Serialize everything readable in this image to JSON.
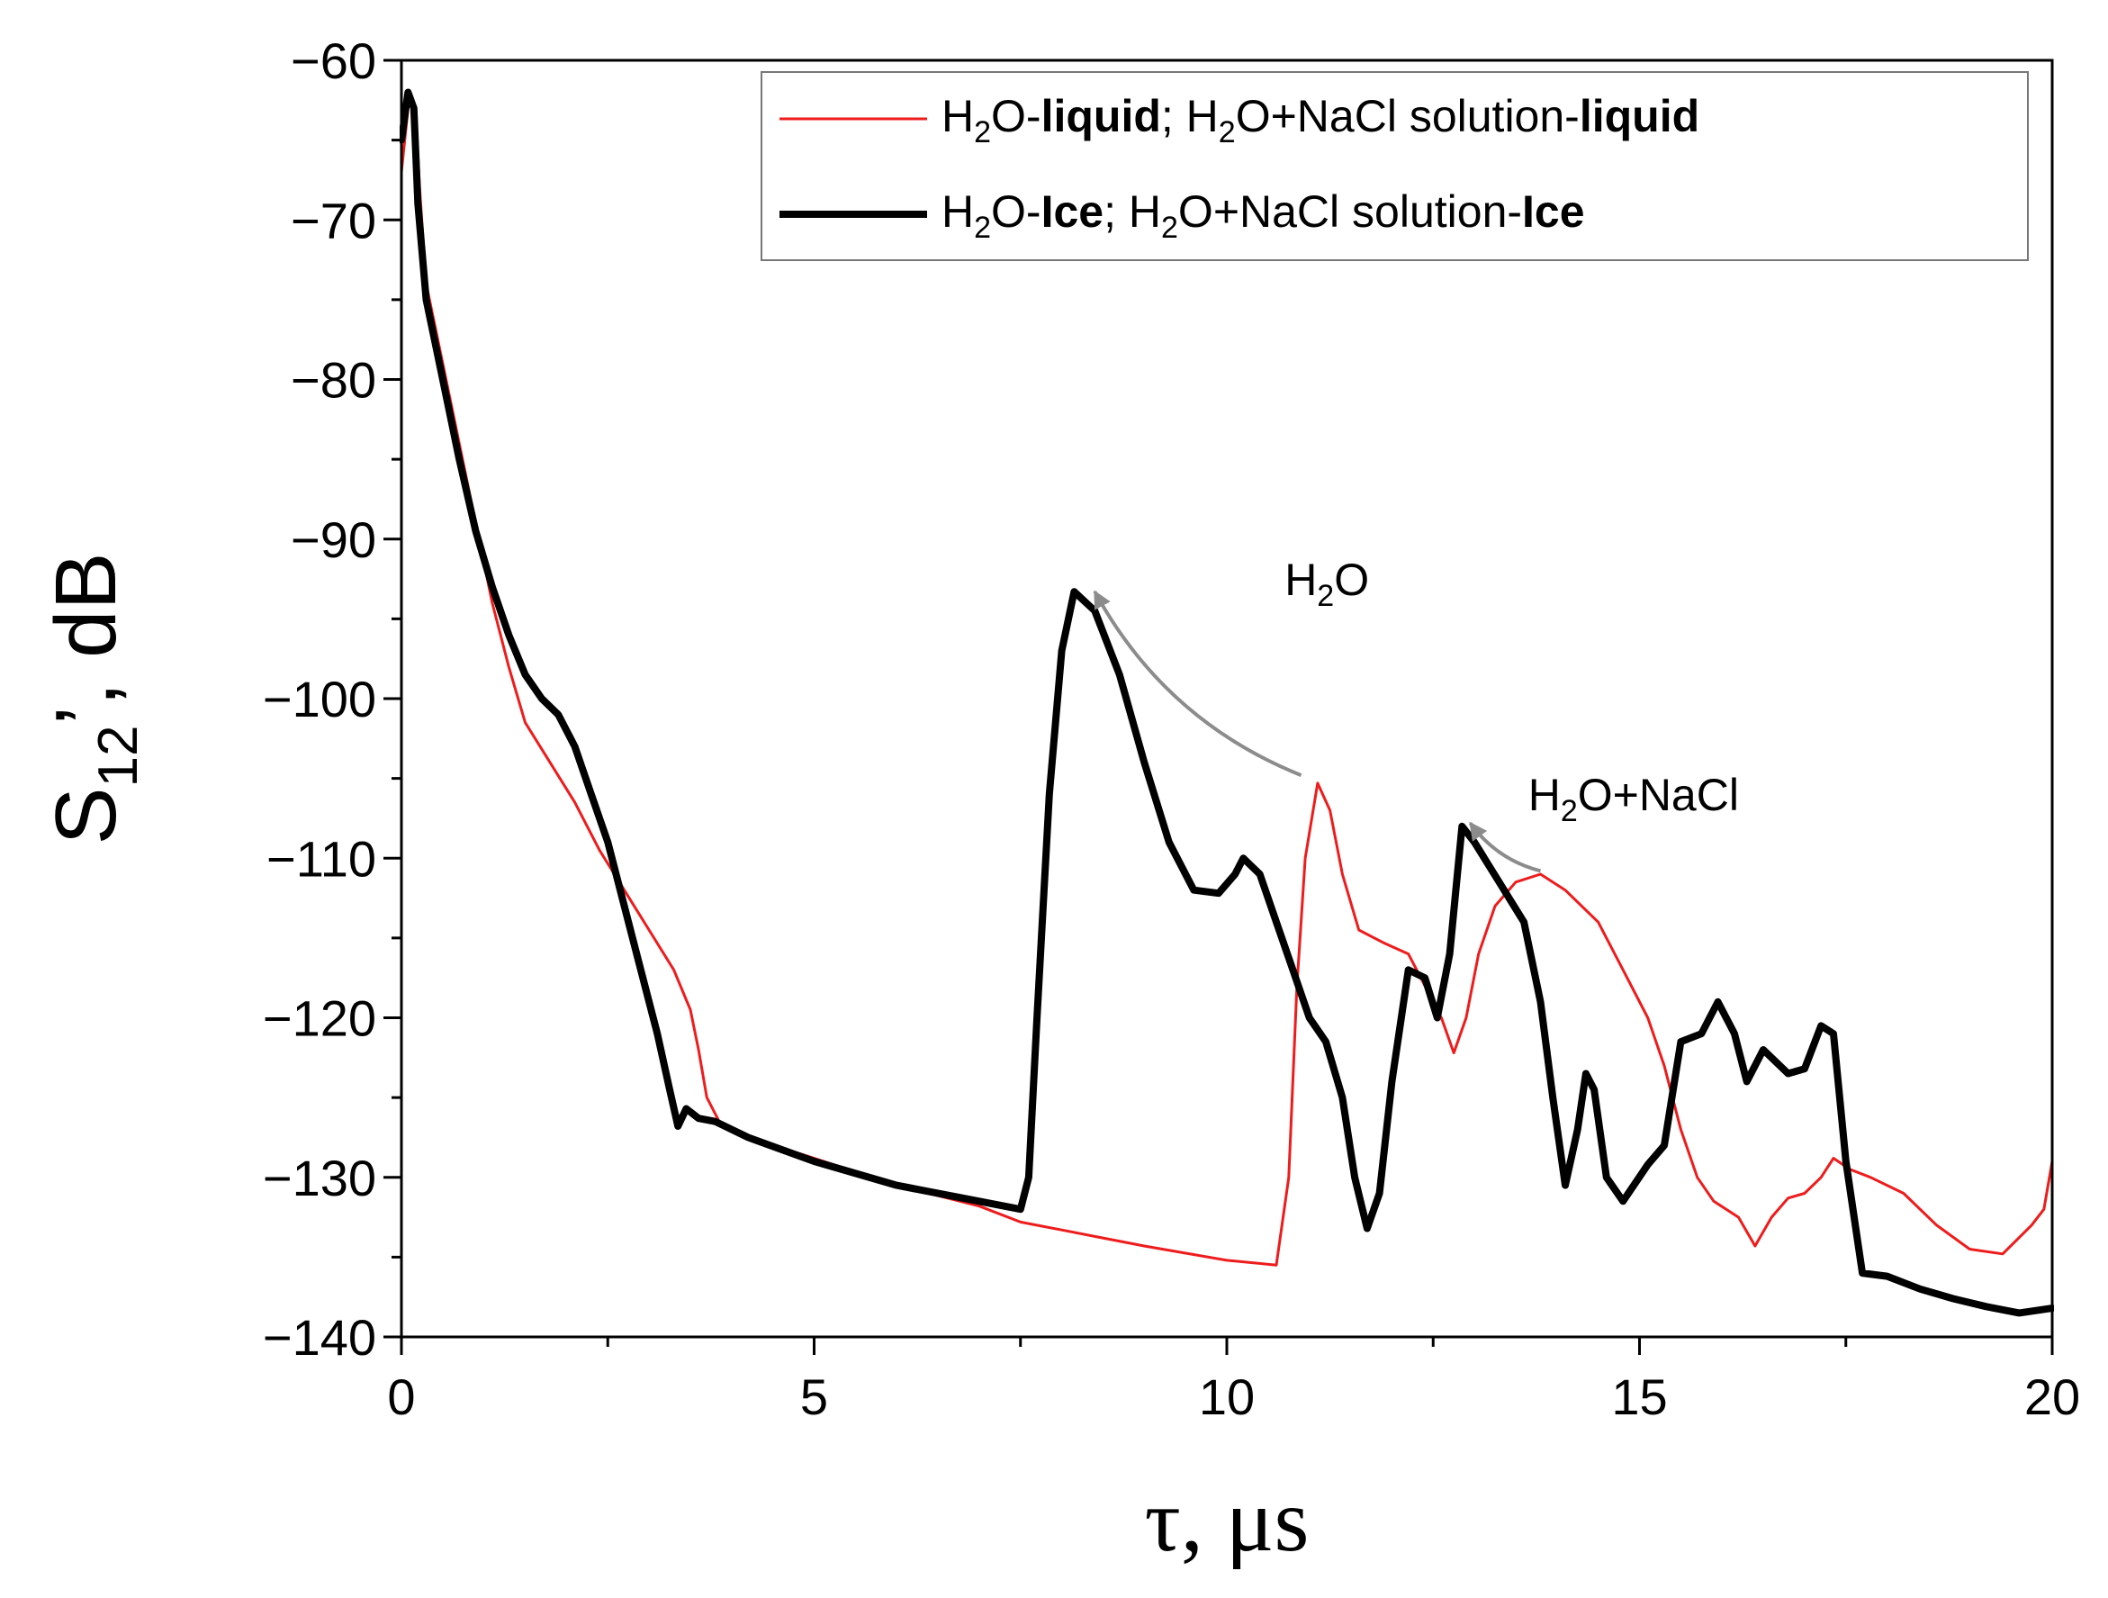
{
  "chart_data": {
    "type": "line",
    "title": "",
    "xlabel": "τ, μs",
    "ylabel": "S",
    "ylabel_subscript": "12",
    "ylabel_suffix": "’, dB",
    "xlim": [
      0,
      20
    ],
    "ylim": [
      -140,
      -60
    ],
    "x_ticks": [
      0,
      5,
      10,
      15,
      20
    ],
    "y_ticks": [
      -60,
      -70,
      -80,
      -90,
      -100,
      -110,
      -120,
      -130,
      -140
    ],
    "x_tick_labels": [
      "0",
      "5",
      "10",
      "15",
      "20"
    ],
    "y_tick_labels": [
      "−60",
      "−70",
      "−80",
      "−90",
      "−100",
      "−110",
      "−120",
      "−130",
      "−140"
    ],
    "grid": false,
    "legend_position": "top-right",
    "legend": [
      {
        "series": "liquid",
        "p1": "H",
        "sub1": "2",
        "p2": "O-",
        "b1": "liquid",
        "p3": "; H",
        "sub2": "2",
        "p4": "O+NaCl solution-",
        "b2": "liquid"
      },
      {
        "series": "ice",
        "p1": "H",
        "sub1": "2",
        "p2": "O-",
        "b1": "Ice",
        "p3": "; H",
        "sub2": "2",
        "p4": "O+NaCl solution-",
        "b2": "Ice"
      }
    ],
    "annotations": [
      {
        "id": "h2o",
        "p1": "H",
        "sub": "2",
        "p2": "O",
        "tx": 10.7,
        "ty": -93.5,
        "from": [
          10.9,
          -104.8
        ],
        "to": [
          8.4,
          -93.3
        ]
      },
      {
        "id": "h2o-nacl",
        "p1": "H",
        "sub": "2",
        "p2": "O+NaCl",
        "tx": 13.65,
        "ty": -107.0,
        "from": [
          13.8,
          -110.8
        ],
        "to": [
          12.95,
          -107.8
        ]
      }
    ],
    "series": [
      {
        "name": "liquid",
        "color": "#ee1c1c",
        "width": 3,
        "points": [
          [
            0,
            -67
          ],
          [
            0.1,
            -62
          ],
          [
            0.17,
            -63
          ],
          [
            0.22,
            -68
          ],
          [
            0.3,
            -74
          ],
          [
            0.5,
            -79
          ],
          [
            0.7,
            -84
          ],
          [
            0.9,
            -89
          ],
          [
            1.1,
            -94
          ],
          [
            1.3,
            -98
          ],
          [
            1.5,
            -101.5
          ],
          [
            1.8,
            -104
          ],
          [
            2.1,
            -106.5
          ],
          [
            2.4,
            -109.5
          ],
          [
            2.7,
            -112
          ],
          [
            3.0,
            -114.5
          ],
          [
            3.3,
            -117
          ],
          [
            3.5,
            -119.5
          ],
          [
            3.6,
            -122
          ],
          [
            3.7,
            -125
          ],
          [
            3.85,
            -126.5
          ],
          [
            4.2,
            -127.5
          ],
          [
            5,
            -128.8
          ],
          [
            6,
            -130.5
          ],
          [
            7,
            -131.8
          ],
          [
            7.5,
            -132.8
          ],
          [
            8,
            -133.3
          ],
          [
            8.5,
            -133.8
          ],
          [
            9,
            -134.3
          ],
          [
            10,
            -135.2
          ],
          [
            10.6,
            -135.5
          ],
          [
            10.75,
            -130
          ],
          [
            10.85,
            -118
          ],
          [
            10.95,
            -110
          ],
          [
            11.1,
            -105.3
          ],
          [
            11.25,
            -107
          ],
          [
            11.4,
            -111
          ],
          [
            11.6,
            -114.5
          ],
          [
            11.9,
            -115.3
          ],
          [
            12.2,
            -116
          ],
          [
            12.4,
            -118
          ],
          [
            12.6,
            -120
          ],
          [
            12.75,
            -122.2
          ],
          [
            12.9,
            -120
          ],
          [
            13.05,
            -116
          ],
          [
            13.25,
            -113
          ],
          [
            13.5,
            -111.5
          ],
          [
            13.8,
            -111
          ],
          [
            14.1,
            -112
          ],
          [
            14.5,
            -114
          ],
          [
            14.8,
            -117
          ],
          [
            15.1,
            -120
          ],
          [
            15.3,
            -123
          ],
          [
            15.5,
            -127
          ],
          [
            15.7,
            -130
          ],
          [
            15.9,
            -131.5
          ],
          [
            16.2,
            -132.5
          ],
          [
            16.4,
            -134.3
          ],
          [
            16.6,
            -132.5
          ],
          [
            16.8,
            -131.3
          ],
          [
            17.0,
            -131
          ],
          [
            17.2,
            -130
          ],
          [
            17.35,
            -128.8
          ],
          [
            17.55,
            -129.5
          ],
          [
            17.8,
            -130
          ],
          [
            18.2,
            -131
          ],
          [
            18.6,
            -133
          ],
          [
            19.0,
            -134.5
          ],
          [
            19.4,
            -134.8
          ],
          [
            19.75,
            -133
          ],
          [
            19.9,
            -132
          ],
          [
            20,
            -129
          ]
        ]
      },
      {
        "name": "ice",
        "color": "#000000",
        "width": 8,
        "points": [
          [
            0,
            -65
          ],
          [
            0.08,
            -62
          ],
          [
            0.15,
            -63
          ],
          [
            0.2,
            -69
          ],
          [
            0.3,
            -75
          ],
          [
            0.5,
            -80
          ],
          [
            0.7,
            -85
          ],
          [
            0.9,
            -89.5
          ],
          [
            1.1,
            -93
          ],
          [
            1.3,
            -96
          ],
          [
            1.5,
            -98.5
          ],
          [
            1.7,
            -100
          ],
          [
            1.9,
            -101
          ],
          [
            2.1,
            -103
          ],
          [
            2.3,
            -106
          ],
          [
            2.5,
            -109
          ],
          [
            2.7,
            -113
          ],
          [
            2.9,
            -117
          ],
          [
            3.1,
            -121
          ],
          [
            3.25,
            -124.5
          ],
          [
            3.35,
            -126.8
          ],
          [
            3.45,
            -125.7
          ],
          [
            3.6,
            -126.3
          ],
          [
            3.8,
            -126.5
          ],
          [
            4.2,
            -127.5
          ],
          [
            5,
            -129
          ],
          [
            6,
            -130.5
          ],
          [
            7,
            -131.5
          ],
          [
            7.5,
            -132
          ],
          [
            7.6,
            -130
          ],
          [
            7.7,
            -120
          ],
          [
            7.85,
            -106
          ],
          [
            8.0,
            -97
          ],
          [
            8.15,
            -93.3
          ],
          [
            8.4,
            -94.5
          ],
          [
            8.7,
            -98.5
          ],
          [
            9.0,
            -104
          ],
          [
            9.3,
            -109
          ],
          [
            9.6,
            -112
          ],
          [
            9.9,
            -112.2
          ],
          [
            10.1,
            -111
          ],
          [
            10.2,
            -110
          ],
          [
            10.4,
            -111
          ],
          [
            10.6,
            -114
          ],
          [
            10.8,
            -117
          ],
          [
            11.0,
            -120
          ],
          [
            11.2,
            -121.5
          ],
          [
            11.4,
            -125
          ],
          [
            11.55,
            -130
          ],
          [
            11.7,
            -133.2
          ],
          [
            11.85,
            -131
          ],
          [
            12.0,
            -124
          ],
          [
            12.2,
            -117
          ],
          [
            12.4,
            -117.5
          ],
          [
            12.55,
            -120
          ],
          [
            12.7,
            -116
          ],
          [
            12.85,
            -108
          ],
          [
            13.0,
            -109
          ],
          [
            13.3,
            -111.5
          ],
          [
            13.6,
            -114
          ],
          [
            13.8,
            -119
          ],
          [
            13.95,
            -125
          ],
          [
            14.1,
            -130.5
          ],
          [
            14.25,
            -127
          ],
          [
            14.35,
            -123.5
          ],
          [
            14.45,
            -124.5
          ],
          [
            14.6,
            -130
          ],
          [
            14.8,
            -131.5
          ],
          [
            15.1,
            -129.2
          ],
          [
            15.3,
            -128
          ],
          [
            15.5,
            -121.5
          ],
          [
            15.75,
            -121
          ],
          [
            15.95,
            -119
          ],
          [
            16.15,
            -121
          ],
          [
            16.3,
            -124
          ],
          [
            16.5,
            -122
          ],
          [
            16.8,
            -123.5
          ],
          [
            17.0,
            -123.2
          ],
          [
            17.2,
            -120.5
          ],
          [
            17.35,
            -121
          ],
          [
            17.5,
            -129
          ],
          [
            17.7,
            -136
          ],
          [
            18.0,
            -136.2
          ],
          [
            18.4,
            -137
          ],
          [
            18.8,
            -137.6
          ],
          [
            19.2,
            -138.1
          ],
          [
            19.6,
            -138.5
          ],
          [
            20,
            -138.2
          ]
        ]
      }
    ]
  }
}
